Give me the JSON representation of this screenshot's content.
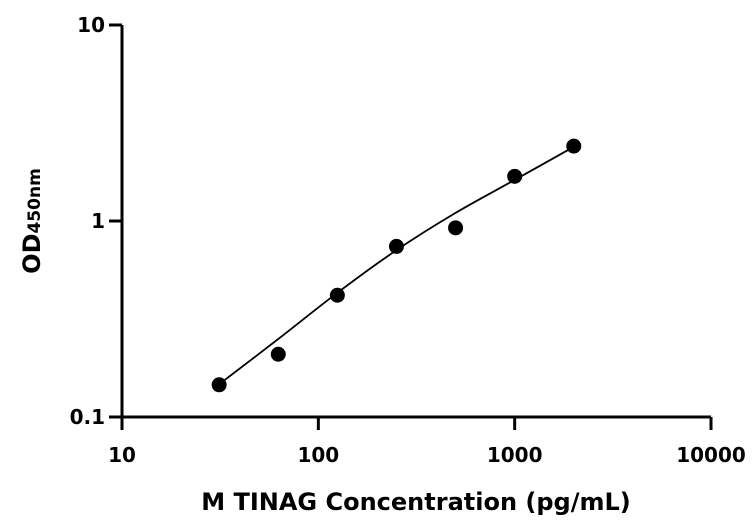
{
  "chart_data": {
    "type": "scatter",
    "xlabel": "M TINAG Concentration (pg/mL)",
    "ylabel": {
      "main": "OD",
      "sub": "450nm"
    },
    "x_scale": "log",
    "y_scale": "log",
    "xlim": [
      10,
      10000
    ],
    "ylim": [
      0.1,
      10
    ],
    "x_ticks": [
      {
        "value": 10,
        "label": "10"
      },
      {
        "value": 100,
        "label": "100"
      },
      {
        "value": 1000,
        "label": "1000"
      },
      {
        "value": 10000,
        "label": "10000"
      }
    ],
    "y_ticks": [
      {
        "value": 0.1,
        "label": "0.1"
      },
      {
        "value": 1,
        "label": "1"
      },
      {
        "value": 10,
        "label": "10"
      }
    ],
    "grid": false,
    "points": [
      {
        "x": 31.25,
        "y": 0.146
      },
      {
        "x": 62.5,
        "y": 0.209
      },
      {
        "x": 125,
        "y": 0.418
      },
      {
        "x": 250,
        "y": 0.742
      },
      {
        "x": 500,
        "y": 0.923
      },
      {
        "x": 1000,
        "y": 1.69
      },
      {
        "x": 2000,
        "y": 2.41
      }
    ],
    "fit_curve": [
      {
        "x": 31.25,
        "y": 0.147
      },
      {
        "x": 62.5,
        "y": 0.25
      },
      {
        "x": 125,
        "y": 0.43
      },
      {
        "x": 250,
        "y": 0.71
      },
      {
        "x": 500,
        "y": 1.1
      },
      {
        "x": 1000,
        "y": 1.62
      },
      {
        "x": 2000,
        "y": 2.39
      }
    ],
    "marker_color": "#000000",
    "line_color": "#000000"
  }
}
